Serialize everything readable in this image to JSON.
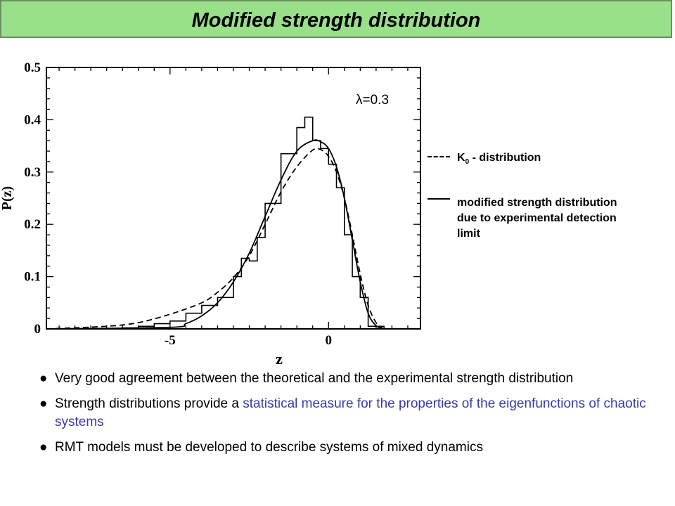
{
  "title": "Modified strength distribution",
  "legend": {
    "items": [
      {
        "symbol": "K",
        "subscript": "0",
        "label": " - distribution",
        "style": "dashed"
      },
      {
        "label_lines": [
          "modified strength distribution",
          "due to experimental detection",
          "limit"
        ],
        "style": "solid"
      }
    ]
  },
  "bullets": [
    {
      "dot": "●",
      "segments": [
        {
          "text": "Very good agreement between the theoretical and the experimental strength distribution",
          "highlight": false
        }
      ]
    },
    {
      "dot": "●",
      "segments": [
        {
          "text": "Strength distributions provide a ",
          "highlight": false
        },
        {
          "text": "statistical measure for the properties of the eigenfunctions of chaotic systems",
          "highlight": true
        }
      ]
    },
    {
      "dot": "●",
      "segments": [
        {
          "text": "RMT models must be developed to describe systems of mixed dynamics",
          "highlight": false
        }
      ]
    }
  ],
  "colors": {
    "title_bar": "#99e08a",
    "highlight_text": "#3a3aa6",
    "lines": "#000000"
  },
  "chart_data": {
    "type": "line",
    "xlabel": "z",
    "ylabel": "P(z)",
    "annotation": "λ=0.3",
    "xlim": [
      -8.9,
      2.9
    ],
    "ylim": [
      0,
      0.5
    ],
    "xticks": [
      {
        "value": -5,
        "label": "-5"
      },
      {
        "value": 0,
        "label": "0"
      }
    ],
    "yticks": [
      {
        "value": 0,
        "label": "0"
      },
      {
        "value": 0.1,
        "label": "0.1"
      },
      {
        "value": 0.2,
        "label": "0.2"
      },
      {
        "value": 0.3,
        "label": "0.3"
      },
      {
        "value": 0.4,
        "label": "0.4"
      },
      {
        "value": 0.5,
        "label": "0.5"
      }
    ],
    "histogram": {
      "bin_edges": [
        -8.9,
        -6.5,
        -6.0,
        -5.5,
        -5.0,
        -4.5,
        -4.0,
        -3.5,
        -3.0,
        -2.75,
        -2.5,
        -2.25,
        -2.0,
        -1.75,
        -1.5,
        -1.25,
        -1.0,
        -0.75,
        -0.5,
        -0.25,
        0.0,
        0.25,
        0.5,
        0.75,
        1.0,
        1.25,
        1.75
      ],
      "values": [
        0.0,
        0.002,
        0.005,
        0.01,
        0.015,
        0.03,
        0.045,
        0.06,
        0.1,
        0.135,
        0.13,
        0.175,
        0.24,
        0.24,
        0.335,
        0.335,
        0.385,
        0.405,
        0.36,
        0.345,
        0.315,
        0.27,
        0.18,
        0.1,
        0.06,
        0.005
      ]
    },
    "series": [
      {
        "name": "K0 - distribution",
        "style": "dashed",
        "x": [
          -8.9,
          -7.0,
          -6.0,
          -5.0,
          -4.0,
          -3.5,
          -3.0,
          -2.5,
          -2.0,
          -1.5,
          -1.0,
          -0.5,
          -0.25,
          0.0,
          0.25,
          0.5,
          0.75,
          1.0,
          1.25,
          1.5,
          1.7
        ],
        "y": [
          0.0,
          0.005,
          0.012,
          0.028,
          0.05,
          0.07,
          0.098,
          0.14,
          0.2,
          0.262,
          0.31,
          0.342,
          0.343,
          0.33,
          0.3,
          0.25,
          0.18,
          0.105,
          0.045,
          0.012,
          0.002
        ]
      },
      {
        "name": "modified strength distribution due to experimental detection limit",
        "style": "solid",
        "x": [
          -8.9,
          -5.0,
          -4.5,
          -4.0,
          -3.5,
          -3.0,
          -2.5,
          -2.0,
          -1.5,
          -1.0,
          -0.5,
          -0.25,
          0.0,
          0.25,
          0.5,
          0.75,
          1.0,
          1.25,
          1.5,
          1.7
        ],
        "y": [
          0.0,
          0.003,
          0.01,
          0.025,
          0.05,
          0.09,
          0.145,
          0.215,
          0.285,
          0.34,
          0.36,
          0.358,
          0.345,
          0.31,
          0.25,
          0.17,
          0.09,
          0.03,
          0.006,
          0.001
        ]
      }
    ]
  }
}
